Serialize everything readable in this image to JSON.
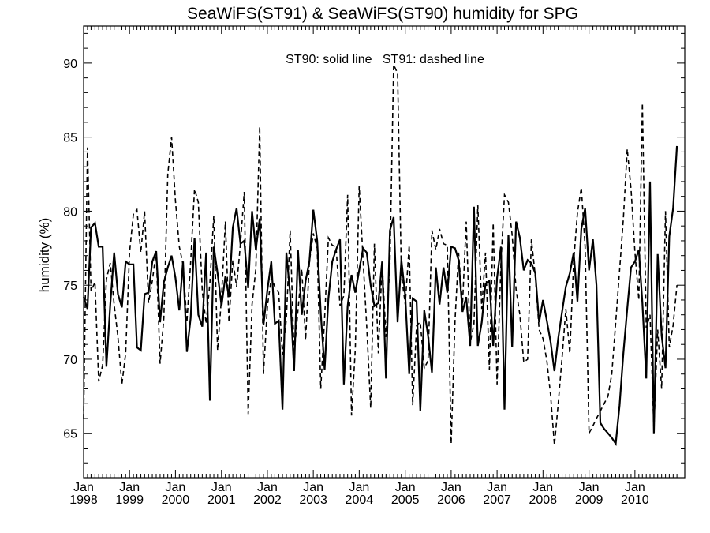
{
  "chart_data": {
    "type": "line",
    "title": "SeaWiFS(ST91) & SeaWiFS(ST90)  humidity for SPG",
    "annotation": "ST90: solid line   ST91: dashed line",
    "xlabel": "",
    "ylabel": "humidity (%)",
    "xlim": [
      "1998-01-01",
      "2011-02-01"
    ],
    "ylim": [
      62,
      92.5
    ],
    "y_ticks": [
      65,
      70,
      75,
      80,
      85,
      90
    ],
    "x_tick_labels": [
      {
        "month": "Jan",
        "year": "1998"
      },
      {
        "month": "Jan",
        "year": "1999"
      },
      {
        "month": "Jan",
        "year": "2000"
      },
      {
        "month": "Jan",
        "year": "2001"
      },
      {
        "month": "Jan",
        "year": "2002"
      },
      {
        "month": "Jan",
        "year": "2003"
      },
      {
        "month": "Jan",
        "year": "2004"
      },
      {
        "month": "Jan",
        "year": "2005"
      },
      {
        "month": "Jan",
        "year": "2006"
      },
      {
        "month": "Jan",
        "year": "2007"
      },
      {
        "month": "Jan",
        "year": "2008"
      },
      {
        "month": "Jan",
        "year": "2009"
      },
      {
        "month": "Jan",
        "year": "2010"
      }
    ],
    "series": [
      {
        "name": "ST90",
        "style": "solid",
        "x": [
          "1998-01",
          "1998-02",
          "1998-03",
          "1998-04",
          "1998-05",
          "1998-06",
          "1998-07",
          "1998-08",
          "1998-09",
          "1998-10",
          "1998-11",
          "1998-12",
          "1999-01",
          "1999-02",
          "1999-03",
          "1999-04",
          "1999-05",
          "1999-06",
          "1999-07",
          "1999-08",
          "1999-09",
          "1999-10",
          "1999-11",
          "1999-12",
          "2000-01",
          "2000-02",
          "2000-03",
          "2000-04",
          "2000-05",
          "2000-06",
          "2000-07",
          "2000-08",
          "2000-09",
          "2000-10",
          "2000-11",
          "2000-12",
          "2001-01",
          "2001-02",
          "2001-03",
          "2001-04",
          "2001-05",
          "2001-06",
          "2001-07",
          "2001-08",
          "2001-09",
          "2001-10",
          "2001-11",
          "2001-12",
          "2002-01",
          "2002-02",
          "2002-03",
          "2002-04",
          "2002-05",
          "2002-06",
          "2002-07",
          "2002-08",
          "2002-09",
          "2002-10",
          "2002-11",
          "2002-12",
          "2003-01",
          "2003-02",
          "2003-03",
          "2003-04",
          "2003-05",
          "2003-06",
          "2003-07",
          "2003-08",
          "2003-09",
          "2003-10",
          "2003-11",
          "2003-12",
          "2004-01",
          "2004-02",
          "2004-03",
          "2004-04",
          "2004-05",
          "2004-06",
          "2004-07",
          "2004-08",
          "2004-09",
          "2004-10",
          "2004-11",
          "2004-12",
          "2005-01",
          "2005-02",
          "2005-03",
          "2005-04",
          "2005-05",
          "2005-06",
          "2005-07",
          "2005-08",
          "2005-09",
          "2005-10",
          "2005-11",
          "2005-12",
          "2006-01",
          "2006-02",
          "2006-03",
          "2006-04",
          "2006-05",
          "2006-06",
          "2006-07",
          "2006-08",
          "2006-09",
          "2006-10",
          "2006-11",
          "2006-12",
          "2007-01",
          "2007-02",
          "2007-03",
          "2007-04",
          "2007-05",
          "2007-06",
          "2007-07",
          "2007-08",
          "2007-09",
          "2007-10",
          "2007-11",
          "2007-12",
          "2008-01",
          "2008-02",
          "2008-03",
          "2008-04",
          "2008-05",
          "2008-06",
          "2008-07",
          "2008-08",
          "2008-09",
          "2008-10",
          "2008-11",
          "2008-12",
          "2009-01",
          "2009-02",
          "2009-03",
          "2009-04",
          "2009-05",
          "2009-06",
          "2009-07",
          "2009-08",
          "2009-09",
          "2009-10",
          "2009-11",
          "2009-12",
          "2010-01",
          "2010-02",
          "2010-03",
          "2010-04",
          "2010-05",
          "2010-06",
          "2010-07",
          "2010-08",
          "2010-09",
          "2010-10",
          "2010-11",
          "2010-12"
        ],
        "values": [
          74.2,
          73.4,
          78.9,
          79.2,
          77.6,
          77.6,
          69.5,
          73.7,
          77.2,
          74.4,
          73.5,
          76.6,
          76.4,
          76.4,
          70.8,
          70.6,
          74.4,
          74.5,
          76.6,
          77.3,
          72.5,
          75.2,
          76.2,
          77.0,
          75.5,
          73.3,
          76.6,
          70.5,
          72.8,
          78.2,
          73.0,
          72.2,
          77.2,
          67.2,
          77.6,
          75.8,
          73.6,
          75.6,
          74.2,
          78.9,
          80.2,
          77.8,
          78.0,
          74.8,
          80.0,
          77.4,
          79.5,
          72.3,
          74.7,
          76.6,
          72.4,
          72.6,
          66.6,
          77.2,
          74.4,
          69.2,
          77.4,
          73.0,
          75.3,
          76.6,
          80.1,
          78.0,
          73.1,
          69.3,
          74.1,
          76.6,
          77.4,
          78.1,
          68.3,
          73.6,
          75.7,
          74.5,
          76.0,
          77.5,
          77.2,
          75.0,
          73.6,
          73.8,
          76.6,
          68.7,
          78.7,
          79.6,
          72.5,
          76.7,
          74.3,
          69.0,
          74.1,
          73.9,
          66.5,
          73.3,
          71.6,
          69.1,
          76.2,
          73.7,
          76.2,
          74.5,
          77.6,
          77.5,
          76.7,
          73.2,
          74.2,
          70.9,
          80.3,
          70.9,
          72.5,
          75.1,
          75.3,
          70.9,
          75.5,
          77.6,
          66.6,
          78.4,
          70.8,
          79.3,
          78.2,
          76.0,
          76.7,
          76.5,
          75.8,
          72.5,
          74.0,
          72.6,
          71.2,
          69.2,
          71.4,
          73.2,
          74.9,
          75.8,
          77.2,
          73.9,
          78.8,
          80.2,
          76.0,
          78.1,
          75.0,
          65.7,
          65.3,
          65.0,
          64.7,
          64.3,
          66.9,
          70.4,
          73.4,
          76.2,
          76.6,
          77.4,
          73.8,
          68.7,
          82.0,
          65.0,
          77.1,
          71.6,
          69.4,
          78.3,
          80.2,
          84.4
        ]
      },
      {
        "name": "ST91",
        "style": "dashed",
        "x": [
          "1998-01",
          "1998-02",
          "1998-03",
          "1998-04",
          "1998-05",
          "1998-06",
          "1998-07",
          "1998-08",
          "1998-09",
          "1998-10",
          "1998-11",
          "1998-12",
          "1999-01",
          "1999-02",
          "1999-03",
          "1999-04",
          "1999-05",
          "1999-06",
          "1999-07",
          "1999-08",
          "1999-09",
          "1999-10",
          "1999-11",
          "1999-12",
          "2000-01",
          "2000-02",
          "2000-03",
          "2000-04",
          "2000-05",
          "2000-06",
          "2000-07",
          "2000-08",
          "2000-09",
          "2000-10",
          "2000-11",
          "2000-12",
          "2001-01",
          "2001-02",
          "2001-03",
          "2001-04",
          "2001-05",
          "2001-06",
          "2001-07",
          "2001-08",
          "2001-09",
          "2001-10",
          "2001-11",
          "2001-12",
          "2002-01",
          "2002-02",
          "2002-03",
          "2002-04",
          "2002-05",
          "2002-06",
          "2002-07",
          "2002-08",
          "2002-09",
          "2002-10",
          "2002-11",
          "2002-12",
          "2003-01",
          "2003-02",
          "2003-03",
          "2003-04",
          "2003-05",
          "2003-06",
          "2003-07",
          "2003-08",
          "2003-09",
          "2003-10",
          "2003-11",
          "2003-12",
          "2004-01",
          "2004-02",
          "2004-03",
          "2004-04",
          "2004-05",
          "2004-06",
          "2004-07",
          "2004-08",
          "2004-09",
          "2004-10",
          "2004-11",
          "2004-12",
          "2005-01",
          "2005-02",
          "2005-03",
          "2005-04",
          "2005-05",
          "2005-06",
          "2005-07",
          "2005-08",
          "2005-09",
          "2005-10",
          "2005-11",
          "2005-12",
          "2006-01",
          "2006-02",
          "2006-03",
          "2006-04",
          "2006-05",
          "2006-06",
          "2006-07",
          "2006-08",
          "2006-09",
          "2006-10",
          "2006-11",
          "2006-12",
          "2007-01",
          "2007-02",
          "2007-03",
          "2007-04",
          "2007-05",
          "2007-06",
          "2007-07",
          "2007-08",
          "2007-09",
          "2007-10",
          "2007-11",
          "2007-12",
          "2008-01",
          "2008-02",
          "2008-03",
          "2008-04",
          "2008-05",
          "2008-06",
          "2008-07",
          "2008-08",
          "2008-09",
          "2008-10",
          "2008-11",
          "2008-12",
          "2009-01",
          "2009-02",
          "2009-03",
          "2009-04",
          "2009-05",
          "2009-06",
          "2009-07",
          "2009-08",
          "2009-09",
          "2009-10",
          "2009-11",
          "2009-12",
          "2010-01",
          "2010-02",
          "2010-03",
          "2010-04",
          "2010-05",
          "2010-06",
          "2010-07",
          "2010-08",
          "2010-09",
          "2010-10",
          "2010-11",
          "2010-12"
        ],
        "values": [
          66.0,
          84.3,
          74.6,
          75.2,
          68.5,
          69.6,
          75.4,
          76.5,
          73.7,
          71.5,
          68.3,
          70.4,
          77.2,
          79.8,
          80.1,
          77.2,
          80.0,
          73.8,
          75.3,
          77.3,
          69.7,
          72.8,
          82.5,
          85.0,
          80.7,
          77.6,
          76.4,
          72.5,
          76.6,
          81.5,
          80.6,
          74.6,
          72.4,
          75.2,
          79.7,
          70.6,
          74.2,
          79.3,
          72.5,
          76.7,
          74.9,
          77.8,
          81.3,
          66.3,
          73.7,
          76.1,
          85.7,
          69.0,
          73.6,
          75.5,
          74.9,
          74.5,
          70.3,
          72.7,
          78.7,
          70.3,
          73.3,
          76.1,
          71.3,
          76.6,
          78.5,
          77.5,
          68.0,
          72.8,
          78.2,
          77.7,
          77.6,
          73.6,
          74.3,
          81.1,
          66.2,
          70.7,
          81.7,
          76.7,
          72.2,
          66.7,
          77.8,
          70.4,
          76.5,
          71.5,
          76.5,
          89.9,
          89.3,
          75.7,
          73.7,
          77.7,
          66.9,
          72.3,
          72.5,
          69.4,
          69.9,
          78.7,
          77.4,
          78.8,
          77.8,
          77.7,
          64.3,
          72.6,
          77.2,
          73.7,
          79.3,
          71.1,
          72.4,
          80.4,
          73.4,
          77.2,
          69.3,
          79.2,
          68.3,
          76.5,
          81.1,
          80.6,
          78.4,
          74.7,
          73.0,
          69.8,
          70.0,
          78.1,
          75.6,
          72.0,
          71.4,
          69.9,
          67.6,
          64.2,
          67.0,
          70.1,
          73.4,
          70.4,
          76.6,
          79.9,
          81.6,
          77.6,
          65.0,
          65.5,
          66.0,
          66.5,
          67.0,
          67.5,
          69.0,
          72.5,
          76.0,
          79.5,
          84.2,
          81.5,
          77.2,
          74.0,
          87.3,
          72.1,
          73.0,
          65.3,
          72.0,
          68.0,
          80.0,
          70.8,
          72.3,
          75.0
        ]
      }
    ]
  }
}
